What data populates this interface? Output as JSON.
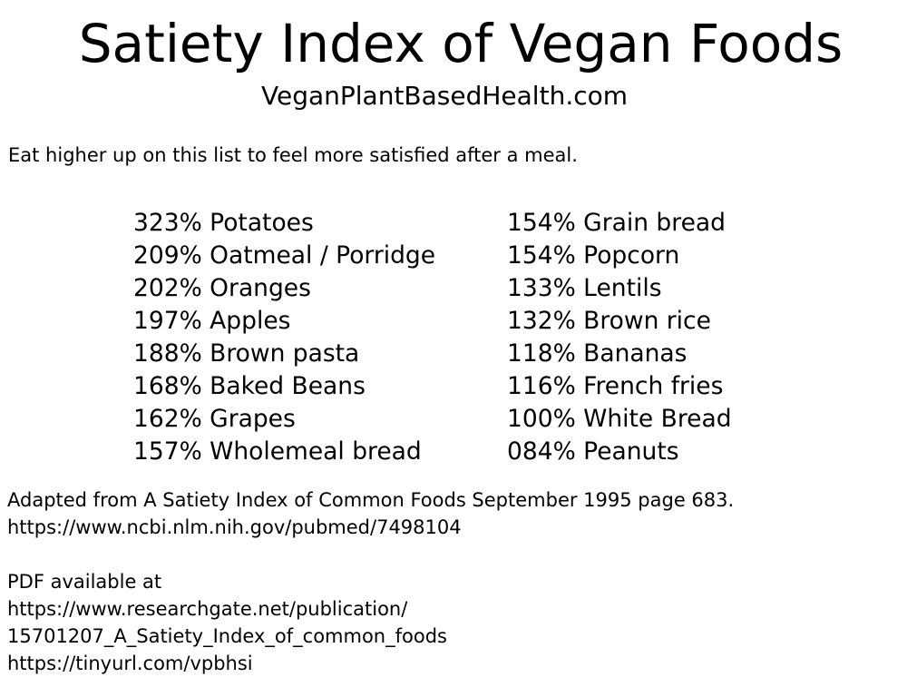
{
  "header": {
    "title": "Satiety Index of Vegan Foods",
    "subtitle": "VeganPlantBasedHealth.com"
  },
  "intro": "Eat higher up on this list to feel more satisfied after a meal.",
  "foods": {
    "left": [
      "323% Potatoes",
      "209% Oatmeal / Porridge",
      "202% Oranges",
      "197% Apples",
      "188% Brown pasta",
      "168% Baked Beans",
      "162% Grapes",
      "157% Wholemeal bread"
    ],
    "right": [
      "154% Grain bread",
      "154% Popcorn",
      "133% Lentils",
      "132% Brown rice",
      "118% Bananas",
      "116% French fries",
      "100% White Bread",
      "084% Peanuts"
    ]
  },
  "source": {
    "citation": "Adapted from A Satiety Index of Common Foods September 1995 page 683.",
    "pubmed_url": "https://www.ncbi.nlm.nih.gov/pubmed/7498104",
    "pdf_label": "PDF available at",
    "researchgate_url_line1": "https://www.researchgate.net/publication/",
    "researchgate_url_line2": "15701207_A_Satiety_Index_of_common_foods",
    "short_url": "https://tinyurl.com/vpbhsi"
  }
}
